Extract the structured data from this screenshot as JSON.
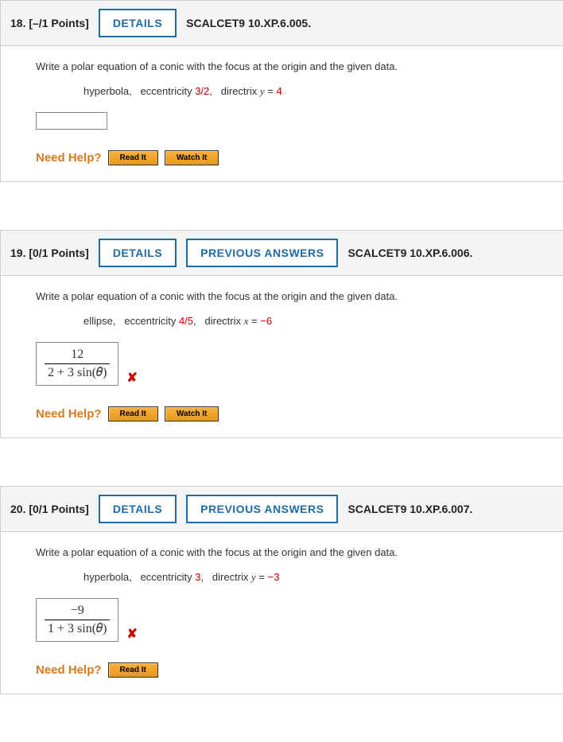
{
  "questions": [
    {
      "number": "18.",
      "points": "[–/1 Points]",
      "buttons": [
        "DETAILS"
      ],
      "source": "SCALCET9 10.XP.6.005.",
      "prompt": "Write a polar equation of a conic with the focus at the origin and the given data.",
      "data_parts": {
        "type": "hyperbola,",
        "ecc_label": "eccentricity ",
        "ecc_value": "3/2",
        "ecc_suffix": ",",
        "dir_label": "directrix ",
        "dir_var": "y",
        "dir_eq": " = ",
        "dir_value": "4"
      },
      "answer": {
        "has_content": false
      },
      "marked_wrong": false,
      "need_help": "Need Help?",
      "help_buttons": [
        "Read It",
        "Watch It"
      ]
    },
    {
      "number": "19.",
      "points": "[0/1 Points]",
      "buttons": [
        "DETAILS",
        "PREVIOUS ANSWERS"
      ],
      "source": "SCALCET9 10.XP.6.006.",
      "prompt": "Write a polar equation of a conic with the focus at the origin and the given data.",
      "data_parts": {
        "type": "ellipse,",
        "ecc_label": "eccentricity ",
        "ecc_value": "4/5",
        "ecc_suffix": ",",
        "dir_label": "directrix ",
        "dir_var": "x",
        "dir_eq": " = ",
        "dir_value": "−6"
      },
      "answer": {
        "has_content": true,
        "numerator": "12",
        "denominator": "2 + 3 sin(𝜃)"
      },
      "marked_wrong": true,
      "need_help": "Need Help?",
      "help_buttons": [
        "Read It",
        "Watch It"
      ]
    },
    {
      "number": "20.",
      "points": "[0/1 Points]",
      "buttons": [
        "DETAILS",
        "PREVIOUS ANSWERS"
      ],
      "source": "SCALCET9 10.XP.6.007.",
      "prompt": "Write a polar equation of a conic with the focus at the origin and the given data.",
      "data_parts": {
        "type": "hyperbola,",
        "ecc_label": "eccentricity ",
        "ecc_value": "3",
        "ecc_suffix": ",",
        "dir_label": "directrix ",
        "dir_var": "y",
        "dir_eq": " = ",
        "dir_value": "−3"
      },
      "answer": {
        "has_content": true,
        "numerator": "−9",
        "denominator": "1 + 3 sin(𝜃)"
      },
      "marked_wrong": true,
      "need_help": "Need Help?",
      "help_buttons": [
        "Read It"
      ]
    }
  ],
  "colors": {
    "header_bg": "#f4f4f4",
    "button_border": "#1e6ba5",
    "help_btn_bg": "#e89820",
    "need_help": "#d97a1a",
    "wrong_mark": "#c00",
    "red_text": "#c00"
  }
}
